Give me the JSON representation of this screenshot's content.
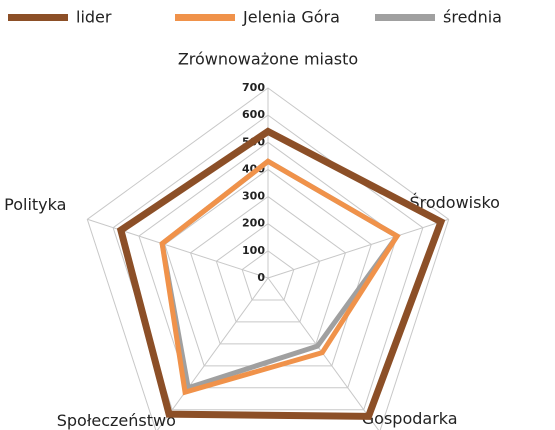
{
  "chart_data": {
    "type": "radar",
    "categories": [
      "Zrównoważone miasto",
      "Środowisko",
      "Gospodarka",
      "Społeczeństwo",
      "Polityka"
    ],
    "series": [
      {
        "name": "lider",
        "color": "#8c4f27",
        "values": [
          540,
          670,
          630,
          620,
          570
        ]
      },
      {
        "name": "Jelenia Góra",
        "color": "#f0924a",
        "values": [
          430,
          500,
          340,
          520,
          410
        ]
      },
      {
        "name": "średnia",
        "color": "#a0a0a0",
        "values": [
          430,
          500,
          310,
          500,
          410
        ]
      }
    ],
    "ylim": [
      0,
      700
    ],
    "yticks": [
      0,
      100,
      200,
      300,
      400,
      500,
      600,
      700
    ],
    "grid": true,
    "legend": "top"
  }
}
